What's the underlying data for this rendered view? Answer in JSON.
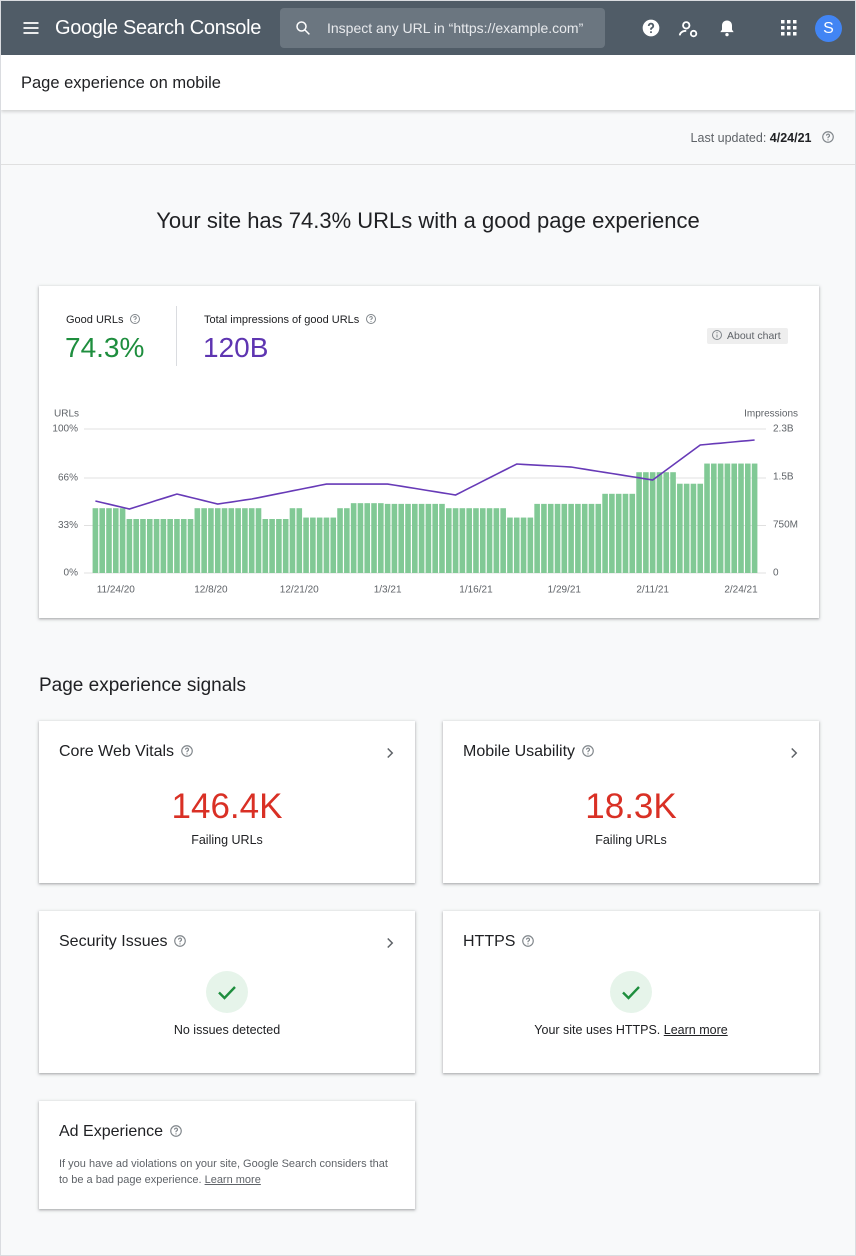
{
  "header": {
    "app_name": "Google Search Console",
    "search_placeholder": "Inspect any URL in “https://example.com”",
    "avatar": "S"
  },
  "page_title": "Page experience on mobile",
  "last_updated": {
    "label": "Last updated:",
    "date": "4/24/21"
  },
  "headline": "Your site has 74.3% URLs with a good page experience",
  "metrics": {
    "good_urls_value": "74.3%",
    "impressions_value": "120B",
    "about_chart": "About chart"
  },
  "chart_data": {
    "type": "bar_line",
    "y_axis_label": "URLs",
    "y2_axis_label": "Impressions",
    "categories": [
      null,
      null,
      null,
      "11/24/20",
      null,
      null,
      null,
      null,
      null,
      null,
      null,
      null,
      null,
      null,
      null,
      null,
      null,
      "12/8/20",
      null,
      null,
      null,
      null,
      null,
      null,
      null,
      null,
      null,
      null,
      null,
      null,
      "12/21/20",
      null,
      null,
      null,
      null,
      null,
      null,
      null,
      null,
      null,
      null,
      null,
      null,
      "1/3/21",
      null,
      null,
      null,
      null,
      null,
      null,
      null,
      null,
      null,
      null,
      null,
      null,
      "1/16/21",
      null,
      null,
      null,
      null,
      null,
      null,
      null,
      null,
      null,
      null,
      null,
      null,
      "1/29/21",
      null,
      null,
      null,
      null,
      null,
      null,
      null,
      null,
      null,
      null,
      null,
      null,
      "2/11/21",
      null,
      null,
      null,
      null,
      null,
      null,
      null,
      null,
      null,
      null,
      null,
      null,
      "2/24/21",
      null,
      null
    ],
    "series": [
      {
        "name": "Good URLs",
        "color": "#81c995",
        "values": [
          45,
          45,
          45,
          45,
          45,
          37.5,
          37.5,
          37.5,
          37.5,
          37.5,
          37.5,
          37.5,
          37.5,
          37.5,
          37.5,
          45,
          45,
          45,
          45,
          45,
          45,
          45,
          45,
          45,
          45,
          37.5,
          37.5,
          37.5,
          37.5,
          45,
          45,
          38.5,
          38.5,
          38.5,
          38.5,
          38.5,
          45,
          45,
          48.5,
          48.5,
          48.5,
          48.5,
          48.5,
          48,
          48,
          48,
          48,
          48,
          48,
          48,
          48,
          48,
          45,
          45,
          45,
          45,
          45,
          45,
          45,
          45,
          45,
          38.5,
          38.5,
          38.5,
          38.5,
          48,
          48,
          48,
          48,
          48,
          48,
          48,
          48,
          48,
          48,
          55,
          55,
          55,
          55,
          55,
          70,
          70,
          70,
          70,
          70,
          70,
          62,
          62,
          62,
          62,
          76,
          76,
          76,
          76,
          76,
          76,
          76,
          76
        ]
      },
      {
        "name": "Total impressions of good URLs",
        "color": "#673ab7",
        "axis": "y2",
        "values": [
          1125000000.0,
          1100000000.0,
          1075000000.0,
          1050000000.0,
          1025000000.0,
          1000000000.0,
          1033000000.0,
          1067000000.0,
          1100000000.0,
          1134000000.0,
          1167000000.0,
          1200000000.0,
          1234000000.0,
          1208000000.0,
          1182000000.0,
          1156000000.0,
          1130000000.0,
          1104000000.0,
          1078000000.0,
          1094000000.0,
          1109000000.0,
          1125000000.0,
          1141000000.0,
          1156000000.0,
          1177000000.0,
          1198000000.0,
          1220000000.0,
          1241000000.0,
          1262000000.0,
          1284000000.0,
          1305000000.0,
          1326000000.0,
          1347000000.0,
          1369000000.0,
          1390000000.0,
          1390000000.0,
          1390000000.0,
          1390000000.0,
          1390000000.0,
          1390000000.0,
          1390000000.0,
          1390000000.0,
          1390000000.0,
          1390000000.0,
          1373000000.0,
          1356000000.0,
          1339000000.0,
          1322000000.0,
          1305000000.0,
          1287000000.0,
          1270000000.0,
          1253000000.0,
          1236000000.0,
          1219000000.0,
          1273000000.0,
          1327000000.0,
          1380000000.0,
          1434000000.0,
          1488000000.0,
          1542000000.0,
          1596000000.0,
          1649000000.0,
          1703000000.0,
          1697000000.0,
          1691000000.0,
          1685000000.0,
          1679000000.0,
          1674000000.0,
          1668000000.0,
          1662000000.0,
          1656000000.0,
          1639000000.0,
          1622000000.0,
          1605000000.0,
          1588000000.0,
          1571000000.0,
          1555000000.0,
          1538000000.0,
          1521000000.0,
          1504000000.0,
          1487000000.0,
          1470000000.0,
          1453000000.0,
          1531000000.0,
          1609000000.0,
          1687000000.0,
          1766000000.0,
          1844000000.0,
          1922000000.0,
          2000000000.0,
          2010000000.0,
          2020000000.0,
          2029000000.0,
          2039000000.0,
          2049000000.0,
          2059000000.0,
          2068000000.0,
          2078000000.0
        ]
      }
    ],
    "ylim": [
      0,
      100
    ],
    "yticks": [
      {
        "value": 0,
        "label": "0%"
      },
      {
        "value": 33,
        "label": "33%"
      },
      {
        "value": 66,
        "label": "66%"
      },
      {
        "value": 100,
        "label": "100%"
      }
    ],
    "y2lim": [
      0,
      2250000000
    ],
    "y2ticks": [
      0,
      {
        "value": 750000000,
        "label": "750M"
      },
      {
        "value": 1500000000,
        "label": "1.5B"
      },
      {
        "value": 2250000000,
        "label": "2.3B"
      }
    ],
    "grid": true
  },
  "signals": {
    "title": "Page experience signals",
    "cards": [
      {
        "title": "Core Web Vitals",
        "value": "146.4K",
        "caption": "Failing URLs"
      },
      {
        "title": "Mobile Usability",
        "value": "18.3K",
        "caption": "Failing URLs"
      },
      {
        "title": "Security Issues",
        "caption": "No issues detected"
      },
      {
        "title": "HTTPS",
        "caption": "Your site uses HTTPS.",
        "link": "Learn more"
      },
      {
        "title": "Ad Experience",
        "caption": "If you have ad violations on your site, Google Search considers that to be a bad page experience.",
        "link": "Learn more"
      }
    ]
  }
}
